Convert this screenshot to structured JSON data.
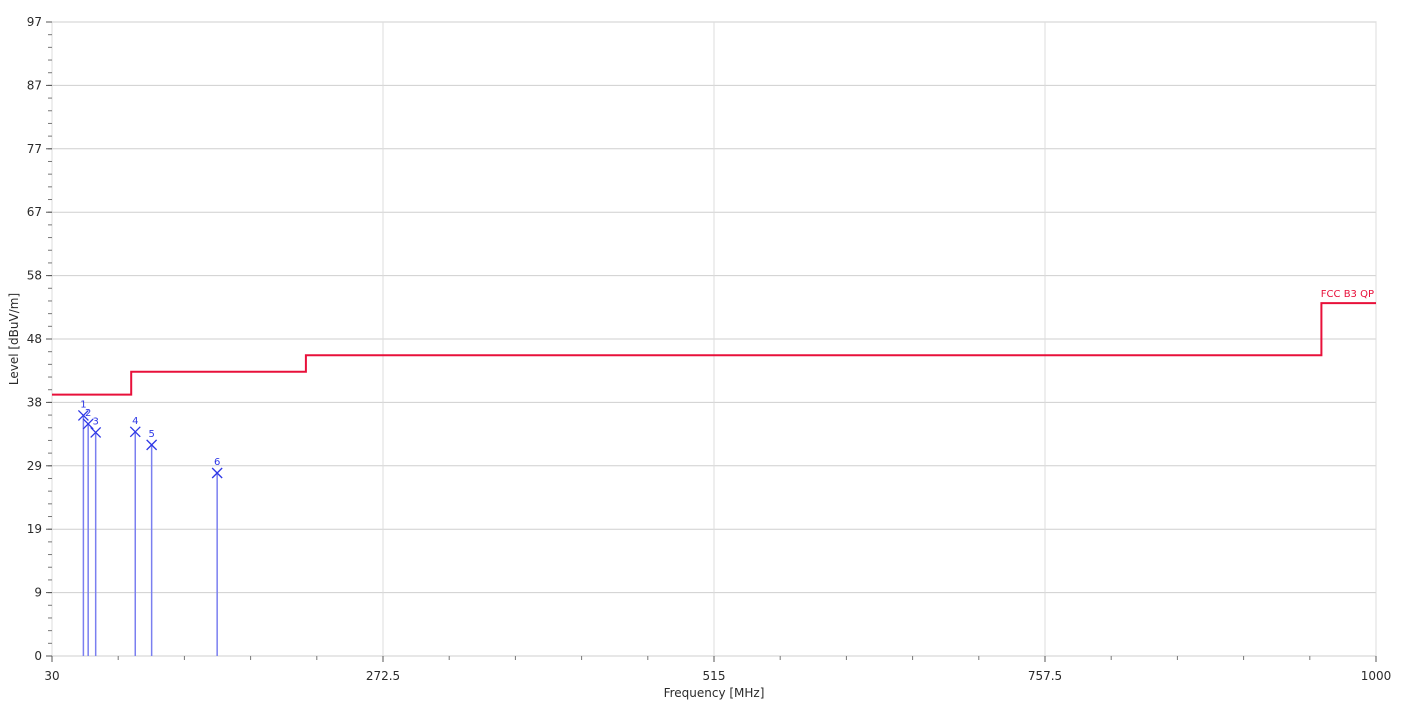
{
  "chart_data": {
    "type": "line",
    "xlabel": "Frequency [MHz]",
    "ylabel": "Level [dBuV/m]",
    "xlim": [
      30,
      1000
    ],
    "ylim": [
      0,
      97
    ],
    "x_ticks": [
      "30",
      "272.5",
      "515",
      "757.5",
      "1000"
    ],
    "x_tick_values": [
      30,
      272.5,
      515,
      757.5,
      1000
    ],
    "y_ticks": [
      "0",
      "9",
      "19",
      "29",
      "38",
      "48",
      "58",
      "67",
      "77",
      "87",
      "97"
    ],
    "y_tick_values": [
      0,
      9.7,
      19.4,
      29.1,
      38.8,
      48.5,
      58.2,
      67.9,
      77.6,
      87.3,
      97
    ],
    "grid": true,
    "limit_line": {
      "name": "FCC B3 QP",
      "color": "#e8103a",
      "points": [
        [
          30,
          40
        ],
        [
          88,
          40
        ],
        [
          88,
          43.5
        ],
        [
          216,
          43.5
        ],
        [
          216,
          46
        ],
        [
          960,
          46
        ],
        [
          960,
          54
        ],
        [
          1000,
          54
        ]
      ]
    },
    "markers": {
      "color": "#2d37e6",
      "points": [
        {
          "label": "1",
          "x": 53,
          "y": 36.8
        },
        {
          "label": "2",
          "x": 56.5,
          "y": 35.5
        },
        {
          "label": "3",
          "x": 62,
          "y": 34.2
        },
        {
          "label": "4",
          "x": 91,
          "y": 34.3
        },
        {
          "label": "5",
          "x": 103,
          "y": 32.3
        },
        {
          "label": "6",
          "x": 151,
          "y": 28.0
        }
      ]
    }
  }
}
